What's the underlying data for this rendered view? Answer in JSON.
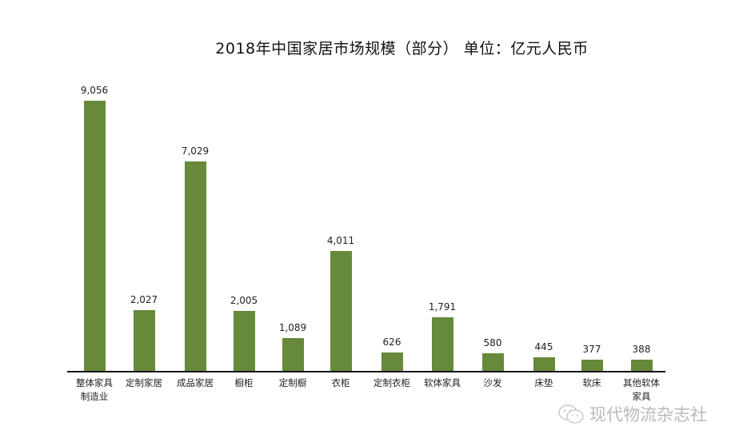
{
  "chart_data": {
    "type": "bar",
    "title": "2018年中国家居市场规模（部分）  单位：亿元人民币",
    "xlabel": "",
    "ylabel": "",
    "unit": "亿元人民币",
    "categories": [
      "整体家具制造业",
      "定制家居",
      "成品家居",
      "橱柜",
      "定制橱",
      "衣柜",
      "定制衣柜",
      "软体家具",
      "沙发",
      "床垫",
      "软床",
      "其他软体家具"
    ],
    "display_categories": [
      [
        "整体家具",
        "制造业"
      ],
      [
        "定制家居"
      ],
      [
        "成品家居"
      ],
      [
        "橱柜"
      ],
      [
        "定制橱"
      ],
      [
        "衣柜"
      ],
      [
        "定制衣柜"
      ],
      [
        "软体家具"
      ],
      [
        "沙发"
      ],
      [
        "床垫"
      ],
      [
        "软床"
      ],
      [
        "其他软体",
        "家具"
      ]
    ],
    "values": [
      9056,
      2027,
      7029,
      2005,
      1089,
      4011,
      626,
      1791,
      580,
      445,
      377,
      388
    ],
    "value_labels": [
      "9,056",
      "2,027",
      "7,029",
      "2,005",
      "1,089",
      "4,011",
      "626",
      "1,791",
      "580",
      "445",
      "377",
      "388"
    ],
    "ylim": [
      0,
      9056
    ],
    "grid": false,
    "legend": null,
    "bar_color": "#66893a"
  },
  "watermark": {
    "text": "现代物流杂志社",
    "icon": "wechat-icon"
  }
}
